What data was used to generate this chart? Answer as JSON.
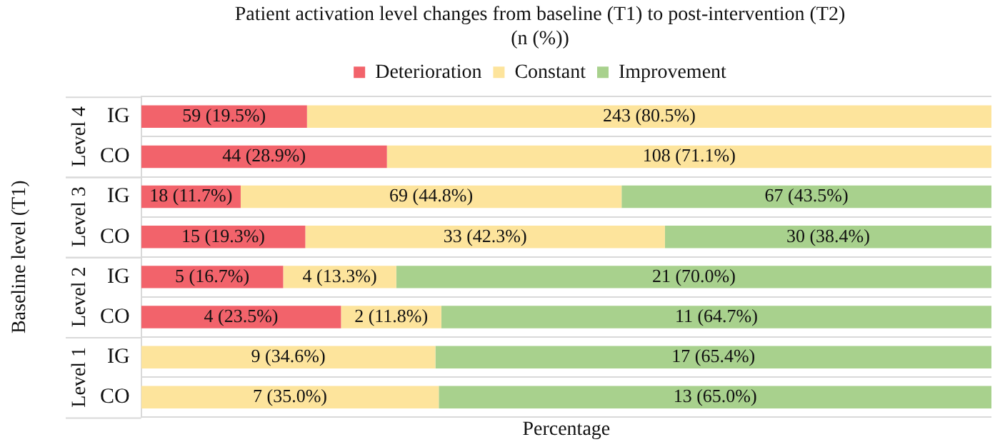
{
  "chart_data": {
    "type": "bar",
    "orientation": "horizontal",
    "stacked": true,
    "title": "Patient activation level changes from baseline (T1) to post-intervention (T2) (n (%))",
    "xlabel": "Percentage",
    "ylabel": "Baseline level (T1)",
    "categories": [
      "IG",
      "CO",
      "IG",
      "CO",
      "IG",
      "CO",
      "IG",
      "CO"
    ],
    "annotations": [
      "Level 4",
      "Level 3",
      "Level 2",
      "Level 1"
    ],
    "xlim": [
      0,
      100
    ],
    "tick_labels": "y",
    "grid": "y",
    "legend": "top",
    "series": [
      {
        "name": "Deterioration",
        "color": "#f2636b",
        "values": [
          19.5,
          28.9,
          11.7,
          19.3,
          16.7,
          23.5,
          0,
          0
        ],
        "value_labels": [
          "59 (19.5%)",
          "44 (28.9%)",
          "18 (11.7%)",
          "15 (19.3%)",
          "5 (16.7%)",
          "4 (23.5%)",
          null,
          null
        ]
      },
      {
        "name": "Constant",
        "color": "#fde49c",
        "values": [
          80.5,
          71.1,
          44.8,
          42.3,
          13.3,
          11.8,
          34.6,
          35.0
        ],
        "value_labels": [
          "243 (80.5%)",
          "108 (71.1%)",
          "69 (44.8%)",
          "33 (42.3%)",
          "4 (13.3%)",
          "2 (11.8%)",
          "9 (34.6%)",
          "7 (35.0%)"
        ]
      },
      {
        "name": "Improvement",
        "color": "#a8d18d",
        "values": [
          0,
          0,
          43.5,
          38.4,
          70.0,
          64.7,
          65.4,
          65.0
        ],
        "value_labels": [
          null,
          null,
          "67 (43.5%)",
          "30 (38.4%)",
          "21 (70.0%)",
          "11 (64.7%)",
          "17 (65.4%)",
          "13 (65.0%)"
        ]
      }
    ]
  }
}
